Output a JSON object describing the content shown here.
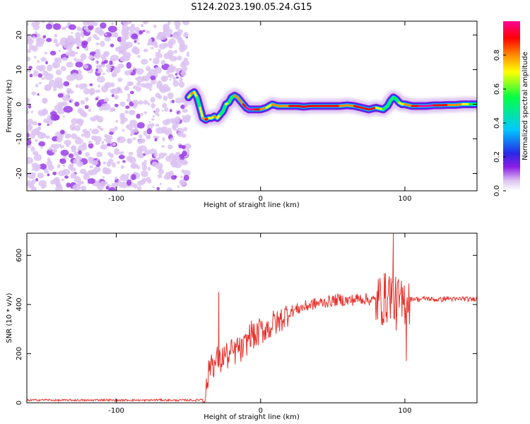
{
  "title": "S124.2023.190.05.24.G15",
  "chart_data": [
    {
      "type": "heatmap",
      "xlabel": "Height of straight line (km)",
      "ylabel": "Frequency (Hz)",
      "xlim": [
        -162,
        150
      ],
      "ylim": [
        -25,
        24
      ],
      "x_ticks": [
        -100,
        0,
        100
      ],
      "y_ticks": [
        -20,
        -10,
        0,
        10,
        20
      ],
      "grid": false,
      "noise_region_x": [
        -162,
        -50
      ],
      "colorbar": {
        "label": "Normalized spectral amplitude",
        "range": [
          0,
          1
        ],
        "ticks": [
          "0.0",
          "0.2",
          "0.4",
          "0.6",
          "0.8"
        ],
        "colors": [
          "#ffffff",
          "#dcc3f2",
          "#8c1ee6",
          "#2828e6",
          "#00c8ff",
          "#00ff46",
          "#ffff00",
          "#ff8c00",
          "#ff0000",
          "#ff0096"
        ]
      },
      "ridge": {
        "x": [
          -50,
          -48,
          -46,
          -44,
          -42,
          -40,
          -38,
          -36,
          -34,
          -32,
          -30,
          -28,
          -26,
          -24,
          -22,
          -20,
          -18,
          -16,
          -14,
          -12,
          -10,
          -8,
          -6,
          -4,
          -2,
          0,
          4,
          8,
          12,
          16,
          20,
          25,
          30,
          35,
          40,
          45,
          50,
          55,
          60,
          65,
          70,
          75,
          80,
          85,
          88,
          90,
          92,
          94,
          96,
          98,
          100,
          105,
          110,
          115,
          120,
          125,
          130,
          135,
          140,
          145,
          150
        ],
        "y": [
          2,
          3,
          3.5,
          2,
          -1,
          -4,
          -4.5,
          -4,
          -4,
          -3.5,
          -4,
          -3,
          -2,
          0,
          0.5,
          2,
          2.5,
          2,
          1,
          0,
          -1,
          -1.5,
          -1.5,
          -1.5,
          -1.5,
          -1.5,
          -1,
          0,
          -0.5,
          -0.5,
          -0.5,
          -0.5,
          -0.7,
          -0.5,
          -0.5,
          -0.5,
          -0.5,
          -0.5,
          -0.3,
          -0.5,
          -1,
          -1.5,
          -1,
          -1.5,
          -0.5,
          1,
          2,
          1.5,
          0.5,
          0,
          0,
          -0.5,
          -0.5,
          -0.5,
          -0.3,
          -0.3,
          -0.2,
          -0.2,
          0,
          0,
          0
        ],
        "amplitude": [
          0.6,
          0.7,
          0.8,
          0.6,
          0.5,
          0.75,
          0.9,
          0.8,
          0.6,
          0.7,
          0.8,
          0.6,
          0.5,
          0.6,
          0.7,
          0.5,
          0.7,
          0.8,
          0.7,
          0.8,
          0.95,
          0.95,
          0.95,
          0.95,
          0.9,
          0.85,
          0.6,
          0.8,
          0.7,
          0.8,
          0.8,
          0.9,
          0.85,
          0.9,
          0.95,
          0.9,
          0.95,
          0.9,
          0.7,
          0.8,
          0.9,
          0.9,
          0.8,
          0.6,
          0.5,
          0.6,
          0.6,
          0.5,
          0.6,
          0.7,
          0.7,
          0.85,
          0.95,
          0.95,
          0.95,
          0.9,
          0.8,
          0.75,
          0.7,
          0.6,
          0.55
        ]
      }
    },
    {
      "type": "line",
      "xlabel": "Height of straight line (km)",
      "ylabel": "SNR (10 * v/v)",
      "xlim": [
        -162,
        150
      ],
      "ylim": [
        0,
        690
      ],
      "x_ticks": [
        -100,
        0,
        100
      ],
      "y_ticks": [
        0,
        200,
        400,
        600
      ],
      "grid": false,
      "color": "#e8302a",
      "series": [
        {
          "x": [
            -162,
            -150,
            -140,
            -130,
            -120,
            -110,
            -100,
            -90,
            -80,
            -70,
            -60,
            -50,
            -45,
            -40,
            -38,
            -36,
            -34,
            -32,
            -30,
            -28,
            -26,
            -24,
            -22,
            -20,
            -18,
            -16,
            -14,
            -12,
            -10,
            -8,
            -6,
            -4,
            -2,
            0,
            2,
            4,
            6,
            8,
            10,
            12,
            14,
            16,
            18,
            20,
            25,
            30,
            35,
            40,
            45,
            50,
            55,
            60,
            65,
            70,
            75,
            80,
            85,
            88,
            90,
            92,
            94,
            96,
            98,
            100,
            102,
            104,
            106,
            110,
            115,
            120,
            125,
            130,
            135,
            140,
            145,
            150
          ],
          "y": [
            10,
            12,
            10,
            11,
            10,
            12,
            10,
            11,
            10,
            12,
            10,
            11,
            10,
            15,
            40,
            120,
            180,
            150,
            180,
            160,
            190,
            200,
            180,
            210,
            200,
            230,
            210,
            220,
            240,
            270,
            290,
            260,
            280,
            300,
            290,
            310,
            300,
            320,
            330,
            320,
            340,
            350,
            360,
            370,
            380,
            390,
            400,
            405,
            410,
            415,
            420,
            415,
            420,
            425,
            420,
            415,
            420,
            430,
            450,
            420,
            400,
            410,
            390,
            420,
            430,
            420,
            425,
            420,
            425,
            420,
            420,
            425,
            420,
            425,
            420,
            425
          ]
        }
      ],
      "annotated_spikes": [
        {
          "x": -29,
          "y": 450
        },
        {
          "x": 92,
          "y": 690
        },
        {
          "x": 101,
          "y": 170
        }
      ]
    }
  ]
}
